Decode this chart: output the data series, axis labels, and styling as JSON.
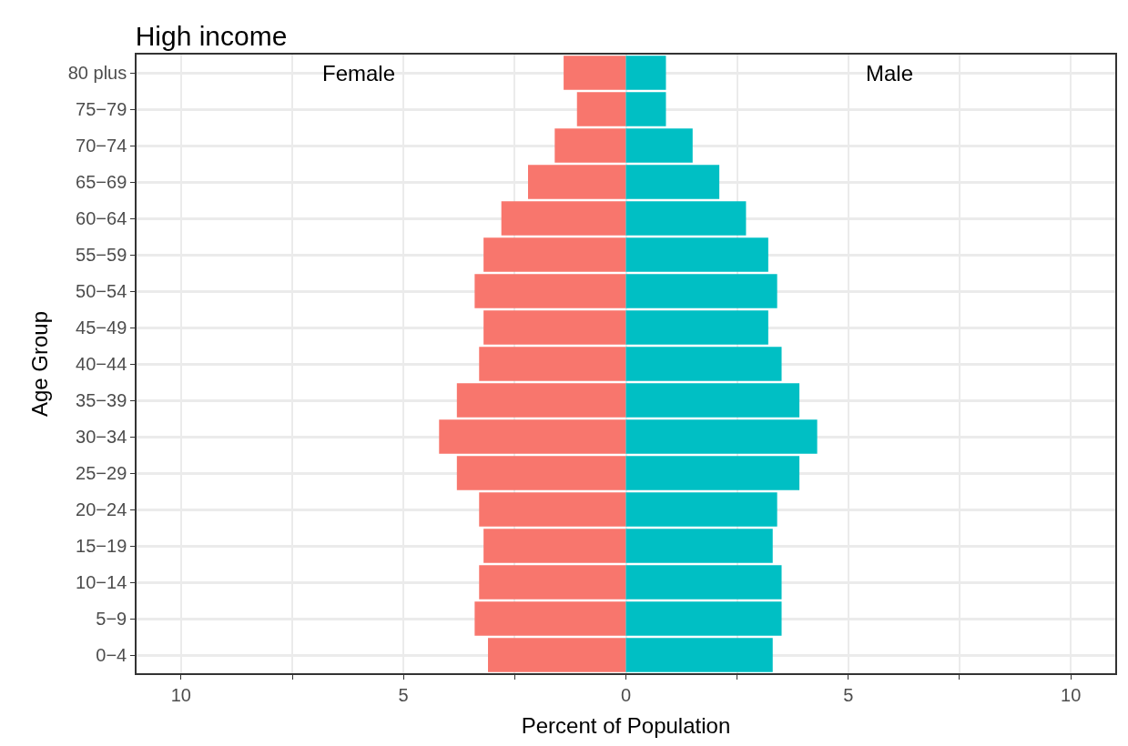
{
  "chart_data": {
    "type": "bar",
    "orientation": "horizontal",
    "stacked": true,
    "title": "High income",
    "xlabel": "Percent of Population",
    "ylabel": "Age Group",
    "categories": [
      "80 plus",
      "75−79",
      "70−74",
      "65−69",
      "60−64",
      "55−59",
      "50−54",
      "45−49",
      "40−44",
      "35−39",
      "30−34",
      "25−29",
      "20−24",
      "15−19",
      "10−14",
      "5−9",
      "0−4"
    ],
    "series": [
      {
        "color": "#f8766d",
        "values": [
          -1.4,
          -1.1,
          -1.6,
          -2.2,
          -2.8,
          -3.2,
          -3.4,
          -3.2,
          -3.3,
          -3.8,
          -4.2,
          -3.8,
          -3.3,
          -3.2,
          -3.3,
          -3.4,
          -3.1
        ]
      },
      {
        "color": "#00bfc4",
        "values": [
          0.9,
          0.9,
          1.5,
          2.1,
          2.7,
          3.2,
          3.4,
          3.2,
          3.5,
          3.9,
          4.3,
          3.9,
          3.4,
          3.3,
          3.5,
          3.5,
          3.3
        ]
      }
    ],
    "xlim": [
      -11,
      11
    ],
    "xticks": [
      {
        "value": -10,
        "label": "10"
      },
      {
        "value": -7.5,
        "label": null
      },
      {
        "value": -5,
        "label": "5"
      },
      {
        "value": -2.5,
        "label": null
      },
      0,
      {
        "value": 2.5,
        "label": null
      },
      5,
      {
        "value": 7.5,
        "label": null
      },
      10
    ],
    "annotations": [
      "Female",
      "Male"
    ],
    "grid": true
  }
}
